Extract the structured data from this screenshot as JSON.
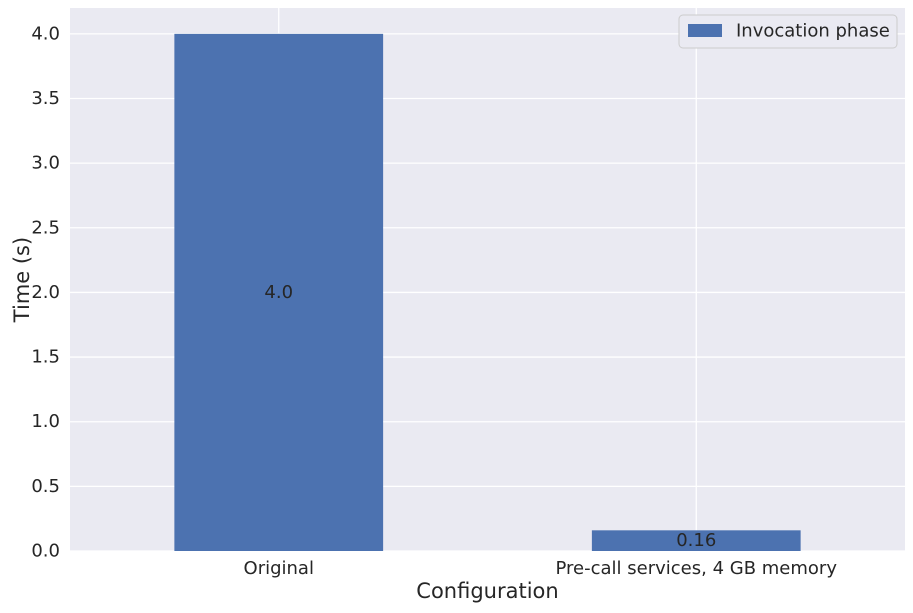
{
  "chart_data": {
    "type": "bar",
    "title": "",
    "xlabel": "Configuration",
    "ylabel": "Time (s)",
    "categories": [
      "Original",
      "Pre-call services, 4 GB memory"
    ],
    "series": [
      {
        "name": "Invocation phase",
        "values": [
          4.0,
          0.16
        ],
        "data_labels": [
          "4.0",
          "0.16"
        ],
        "color": "#4C72B0"
      }
    ],
    "ylim": [
      0,
      4.2
    ],
    "yticks": [
      0.0,
      0.5,
      1.0,
      1.5,
      2.0,
      2.5,
      3.0,
      3.5,
      4.0
    ],
    "ytick_labels": [
      "0.0",
      "0.5",
      "1.0",
      "1.5",
      "2.0",
      "2.5",
      "3.0",
      "3.5",
      "4.0"
    ],
    "grid": true,
    "legend_position": "top-right",
    "colors": {
      "plot_background": "#EAEAF2",
      "grid": "#FFFFFF",
      "text": "#262626",
      "bar": "#4C72B0"
    }
  }
}
